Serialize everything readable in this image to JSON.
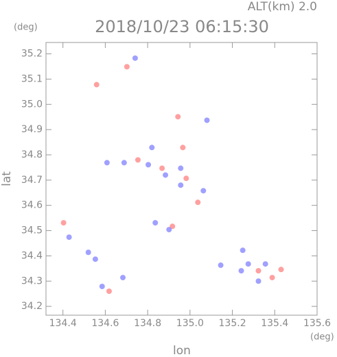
{
  "chart_data": {
    "type": "scatter",
    "subtitle": "ALT(km) 2.0",
    "title": "2018/10/23 06:15:30",
    "y_unit": "(deg)",
    "x_unit": "(deg)",
    "ylabel": "lat",
    "xlabel": "lon",
    "xlim": [
      134.32,
      135.6
    ],
    "ylim": [
      34.165,
      35.245
    ],
    "xticks": [
      134.4,
      134.6,
      134.8,
      {
        "value": 135,
        "label": "135.0"
      },
      135.2,
      135.4,
      135.6
    ],
    "yticks": [
      34.2,
      34.3,
      34.4,
      34.5,
      34.6,
      34.7,
      34.8,
      34.9,
      {
        "value": 35,
        "label": "35.0"
      },
      35.1,
      35.2
    ],
    "x": [
      134.741,
      134.702,
      134.559,
      134.943,
      135.08,
      134.82,
      134.966,
      134.608,
      134.689,
      134.754,
      134.803,
      134.868,
      134.884,
      134.956,
      134.982,
      135.063,
      135.037,
      134.956,
      134.836,
      134.917,
      134.901,
      134.403,
      134.429,
      134.52,
      134.553,
      134.585,
      134.618,
      134.683,
      135.249,
      135.275,
      135.242,
      135.323,
      135.356,
      135.388,
      135.43,
      135.323,
      135.145
    ],
    "y": [
      35.183,
      35.149,
      35.078,
      34.951,
      34.937,
      34.829,
      34.829,
      34.769,
      34.769,
      34.78,
      34.761,
      34.747,
      34.72,
      34.747,
      34.707,
      34.658,
      34.612,
      34.68,
      34.531,
      34.517,
      34.504,
      34.531,
      34.474,
      34.414,
      34.387,
      34.279,
      34.26,
      34.314,
      34.422,
      34.368,
      34.341,
      34.341,
      34.368,
      34.314,
      34.346,
      34.3,
      34.363
    ],
    "colors": [
      "#8888ff",
      "#ff8888",
      "#ff8888",
      "#ff8888",
      "#8888ff",
      "#8888ff",
      "#ff8888",
      "#8888ff",
      "#8888ff",
      "#ff8888",
      "#8888ff",
      "#ff8888",
      "#8888ff",
      "#8888ff",
      "#ff8888",
      "#8888ff",
      "#ff8888",
      "#8888ff",
      "#8888ff",
      "#ff8888",
      "#8888ff",
      "#ff8888",
      "#8888ff",
      "#8888ff",
      "#8888ff",
      "#8888ff",
      "#ff8888",
      "#8888ff",
      "#8888ff",
      "#8888ff",
      "#8888ff",
      "#ff8888",
      "#8888ff",
      "#ff8888",
      "#ff8888",
      "#8888ff",
      "#8888ff"
    ]
  }
}
